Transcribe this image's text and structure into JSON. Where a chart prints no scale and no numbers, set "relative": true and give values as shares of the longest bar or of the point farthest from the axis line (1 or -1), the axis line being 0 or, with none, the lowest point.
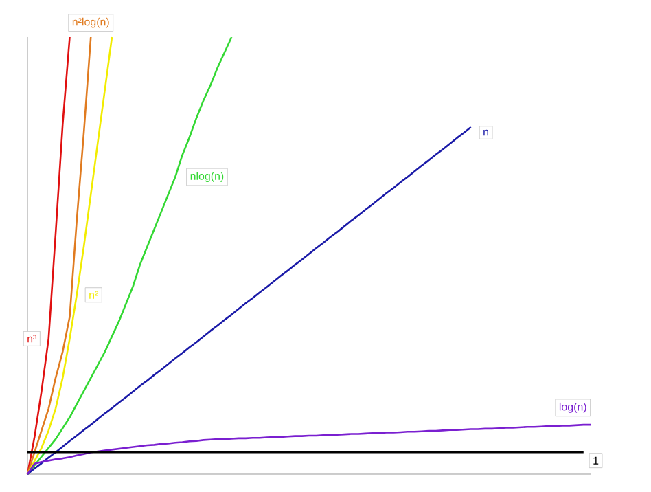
{
  "chart_data": {
    "type": "line",
    "relative": true,
    "categories": [
      null,
      null,
      null,
      null,
      null,
      null,
      null,
      null,
      null,
      null,
      null,
      null,
      null,
      null,
      null,
      null,
      null,
      null,
      null,
      null,
      null,
      null,
      null,
      null,
      null,
      null,
      null,
      null,
      null,
      null,
      null,
      null,
      null,
      null,
      null,
      null,
      null,
      null,
      null,
      null,
      null,
      null,
      null,
      null,
      null,
      null,
      null,
      null,
      null,
      null,
      null,
      null,
      null,
      null,
      null,
      null,
      null,
      null,
      null,
      null,
      null,
      null,
      null,
      null,
      null,
      null,
      null,
      null,
      null,
      null,
      null,
      null,
      null,
      null,
      null,
      null,
      null,
      null,
      null,
      null,
      null
    ],
    "series": [
      {
        "name": "n³",
        "color": "#e01010",
        "values": [
          0,
          0.085,
          0.19,
          0.31,
          0.55,
          0.8,
          1,
          null,
          null,
          null,
          null,
          null,
          null,
          null,
          null,
          null,
          null,
          null,
          null,
          null,
          null,
          null,
          null,
          null,
          null,
          null,
          null,
          null,
          null,
          null,
          null,
          null,
          null,
          null,
          null,
          null,
          null,
          null,
          null,
          null,
          null,
          null,
          null,
          null,
          null,
          null,
          null,
          null,
          null,
          null,
          null,
          null,
          null,
          null,
          null,
          null,
          null,
          null,
          null,
          null,
          null,
          null,
          null,
          null,
          null,
          null,
          null,
          null,
          null,
          null,
          null,
          null,
          null,
          null,
          null,
          null,
          null,
          null,
          null,
          null,
          null
        ]
      },
      {
        "name": "n²log(n)",
        "color": "#e07b20",
        "values": [
          0,
          0.05,
          0.1,
          0.15,
          0.22,
          0.28,
          0.36,
          0.58,
          0.78,
          1,
          null,
          null,
          null,
          null,
          null,
          null,
          null,
          null,
          null,
          null,
          null,
          null,
          null,
          null,
          null,
          null,
          null,
          null,
          null,
          null,
          null,
          null,
          null,
          null,
          null,
          null,
          null,
          null,
          null,
          null,
          null,
          null,
          null,
          null,
          null,
          null,
          null,
          null,
          null,
          null,
          null,
          null,
          null,
          null,
          null,
          null,
          null,
          null,
          null,
          null,
          null,
          null,
          null,
          null,
          null,
          null,
          null,
          null,
          null,
          null,
          null,
          null,
          null,
          null,
          null,
          null,
          null,
          null,
          null,
          null,
          null
        ]
      },
      {
        "name": "n²",
        "color": "#f2ec00",
        "values": [
          0,
          0.03,
          0.06,
          0.1,
          0.15,
          0.22,
          0.31,
          0.41,
          0.52,
          0.64,
          0.76,
          0.88,
          1,
          null,
          null,
          null,
          null,
          null,
          null,
          null,
          null,
          null,
          null,
          null,
          null,
          null,
          null,
          null,
          null,
          null,
          null,
          null,
          null,
          null,
          null,
          null,
          null,
          null,
          null,
          null,
          null,
          null,
          null,
          null,
          null,
          null,
          null,
          null,
          null,
          null,
          null,
          null,
          null,
          null,
          null,
          null,
          null,
          null,
          null,
          null,
          null,
          null,
          null,
          null,
          null,
          null,
          null,
          null,
          null,
          null,
          null,
          null,
          null,
          null,
          null,
          null,
          null,
          null,
          null,
          null,
          null
        ]
      },
      {
        "name": "nlog(n)",
        "color": "#33d833",
        "values": [
          0,
          0.02,
          0.04,
          0.06,
          0.08,
          0.105,
          0.13,
          0.16,
          0.19,
          0.22,
          0.25,
          0.28,
          0.315,
          0.35,
          0.39,
          0.43,
          0.48,
          0.52,
          0.56,
          0.6,
          0.64,
          0.68,
          0.73,
          0.77,
          0.815,
          0.855,
          0.89,
          0.93,
          0.965,
          1,
          null,
          null,
          null,
          null,
          null,
          null,
          null,
          null,
          null,
          null,
          null,
          null,
          null,
          null,
          null,
          null,
          null,
          null,
          null,
          null,
          null,
          null,
          null,
          null,
          null,
          null,
          null,
          null,
          null,
          null,
          null,
          null,
          null,
          null,
          null,
          null,
          null,
          null,
          null,
          null,
          null,
          null,
          null,
          null,
          null,
          null,
          null,
          null,
          null,
          null,
          null
        ]
      },
      {
        "name": "n",
        "color": "#1a1aa8",
        "values": [
          0,
          0.013,
          0.025,
          0.038,
          0.05,
          0.063,
          0.076,
          0.088,
          0.101,
          0.113,
          0.126,
          0.139,
          0.151,
          0.164,
          0.176,
          0.189,
          0.202,
          0.214,
          0.227,
          0.239,
          0.252,
          0.265,
          0.277,
          0.29,
          0.302,
          0.315,
          0.328,
          0.34,
          0.353,
          0.365,
          0.378,
          0.391,
          0.403,
          0.416,
          0.428,
          0.441,
          0.454,
          0.466,
          0.479,
          0.491,
          0.504,
          0.517,
          0.529,
          0.542,
          0.554,
          0.567,
          0.58,
          0.592,
          0.605,
          0.617,
          0.63,
          0.643,
          0.655,
          0.668,
          0.68,
          0.693,
          0.706,
          0.718,
          0.731,
          0.743,
          0.756,
          0.769,
          0.781,
          0.794,
          null,
          null,
          null,
          null,
          null,
          null,
          null,
          null,
          null,
          null,
          null,
          null,
          null,
          null,
          null,
          null,
          null
        ]
      },
      {
        "name": "log(n)",
        "color": "#7a1fd0",
        "values": [
          0,
          0.024,
          0.028,
          0.031,
          0.034,
          0.036,
          0.039,
          0.043,
          0.046,
          0.05,
          0.052,
          0.054,
          0.056,
          0.058,
          0.06,
          0.062,
          0.064,
          0.066,
          0.067,
          0.069,
          0.07,
          0.072,
          0.073,
          0.075,
          0.076,
          0.078,
          0.079,
          0.08,
          0.08,
          0.081,
          0.082,
          0.082,
          0.083,
          0.083,
          0.084,
          0.085,
          0.085,
          0.086,
          0.087,
          0.087,
          0.088,
          0.088,
          0.089,
          0.09,
          0.09,
          0.091,
          0.092,
          0.092,
          0.093,
          0.094,
          0.094,
          0.095,
          0.095,
          0.096,
          0.097,
          0.097,
          0.098,
          0.099,
          0.099,
          0.1,
          0.101,
          0.101,
          0.102,
          0.103,
          0.103,
          0.104,
          0.104,
          0.105,
          0.106,
          0.106,
          0.107,
          0.108,
          0.108,
          0.109,
          0.11,
          0.11,
          0.111,
          0.111,
          0.112,
          0.113,
          0.113
        ]
      },
      {
        "name": "1",
        "color": "#000000",
        "values": [
          0.05,
          0.05,
          0.05,
          0.05,
          0.05,
          0.05,
          0.05,
          0.05,
          0.05,
          0.05,
          0.05,
          0.05,
          0.05,
          0.05,
          0.05,
          0.05,
          0.05,
          0.05,
          0.05,
          0.05,
          0.05,
          0.05,
          0.05,
          0.05,
          0.05,
          0.05,
          0.05,
          0.05,
          0.05,
          0.05,
          0.05,
          0.05,
          0.05,
          0.05,
          0.05,
          0.05,
          0.05,
          0.05,
          0.05,
          0.05,
          0.05,
          0.05,
          0.05,
          0.05,
          0.05,
          0.05,
          0.05,
          0.05,
          0.05,
          0.05,
          0.05,
          0.05,
          0.05,
          0.05,
          0.05,
          0.05,
          0.05,
          0.05,
          0.05,
          0.05,
          0.05,
          0.05,
          0.05,
          0.05,
          0.05,
          0.05,
          0.05,
          0.05,
          0.05,
          0.05,
          0.05,
          0.05,
          0.05,
          0.05,
          0.05,
          0.05,
          0.05,
          0.05,
          0.05,
          0.05,
          null
        ]
      }
    ]
  }
}
